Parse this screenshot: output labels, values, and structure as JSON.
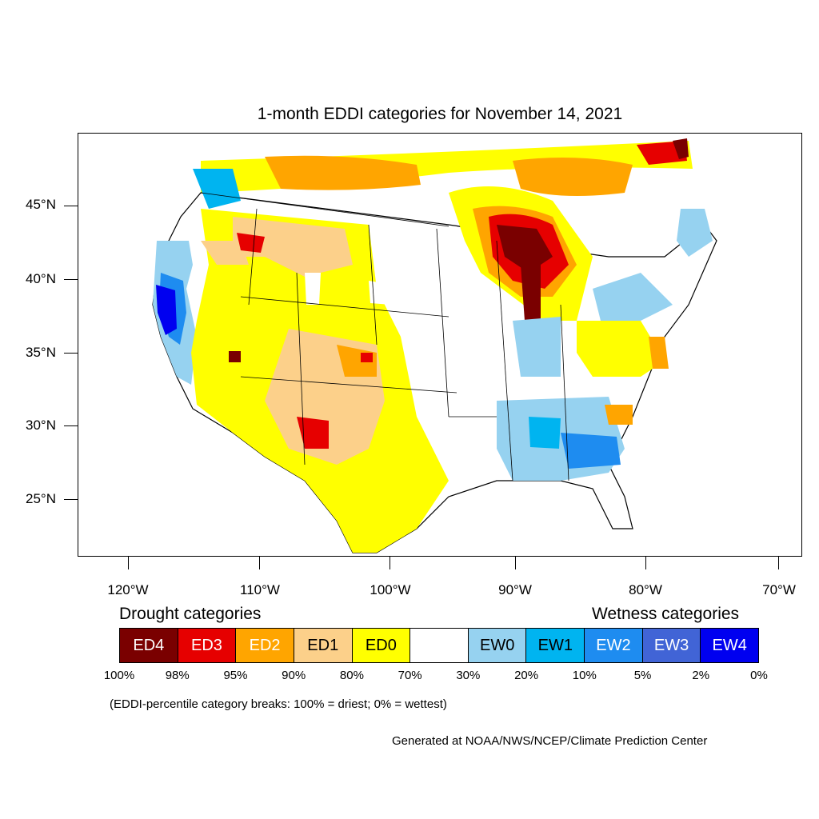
{
  "title": "1-month EDDI categories for November 14, 2021",
  "map": {
    "lat_labels": [
      "45°N",
      "40°N",
      "35°N",
      "30°N",
      "25°N"
    ],
    "lon_labels": [
      "120°W",
      "110°W",
      "100°W",
      "90°W",
      "80°W",
      "70°W"
    ]
  },
  "legend": {
    "drought_title": "Drought categories",
    "wetness_title": "Wetness categories",
    "categories": [
      {
        "label": "ED4",
        "color": "#7a0000"
      },
      {
        "label": "ED3",
        "color": "#e60000"
      },
      {
        "label": "ED2",
        "color": "#ffa500"
      },
      {
        "label": "ED1",
        "color": "#fcd08a"
      },
      {
        "label": "ED0",
        "color": "#ffff00"
      },
      {
        "label": "",
        "color": "#ffffff"
      },
      {
        "label": "EW0",
        "color": "#96d2f0"
      },
      {
        "label": "EW1",
        "color": "#00b4f0"
      },
      {
        "label": "EW2",
        "color": "#1e8cf0"
      },
      {
        "label": "EW3",
        "color": "#4164d6"
      },
      {
        "label": "EW4",
        "color": "#0000f0"
      }
    ],
    "breaks": [
      "100%",
      "98%",
      "95%",
      "90%",
      "80%",
      "70%",
      "30%",
      "20%",
      "10%",
      "5%",
      "2%",
      "0%"
    ]
  },
  "note": "(EDDI-percentile category breaks: 100% = driest; 0% = wettest)",
  "credit": "Generated at NOAA/NWS/NCEP/Climate Prediction Center"
}
